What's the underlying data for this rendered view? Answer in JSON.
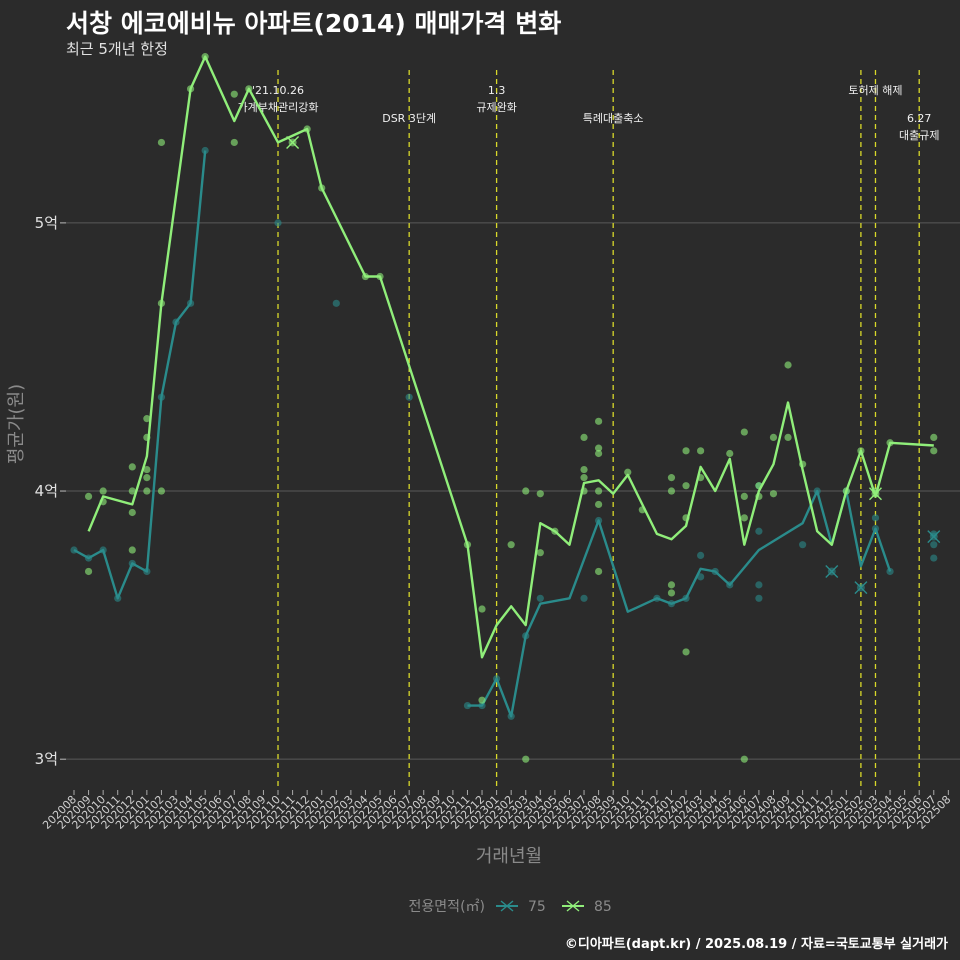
{
  "title": "서창 에코에비뉴 아파트(2014) 매매가격 변화",
  "subtitle": "최근 5개년 한정",
  "caption": "©디아파트(dapt.kr) / 2025.08.19 / 자료=국토교통부 실거래가",
  "chart_data": {
    "type": "line",
    "xlabel": "거래년월",
    "ylabel": "평균가(원)",
    "ylim": [
      2.9,
      5.6
    ],
    "yticks": [
      {
        "v": 3,
        "label": "3억"
      },
      {
        "v": 4,
        "label": "4억"
      },
      {
        "v": 5,
        "label": "5억"
      }
    ],
    "grid": true,
    "legend": {
      "title": "전용면적(㎡)",
      "placement": "bottom"
    },
    "x": [
      "202008",
      "202009",
      "202010",
      "202011",
      "202012",
      "202101",
      "202102",
      "202103",
      "202104",
      "202105",
      "202106",
      "202107",
      "202108",
      "202109",
      "202110",
      "202111",
      "202112",
      "202201",
      "202202",
      "202203",
      "202204",
      "202205",
      "202206",
      "202207",
      "202208",
      "202209",
      "202210",
      "202211",
      "202212",
      "202301",
      "202302",
      "202303",
      "202304",
      "202305",
      "202306",
      "202307",
      "202308",
      "202309",
      "202310",
      "202311",
      "202312",
      "202401",
      "202402",
      "202403",
      "202404",
      "202405",
      "202406",
      "202407",
      "202408",
      "202409",
      "202410",
      "202411",
      "202412",
      "202501",
      "202502",
      "202503",
      "202504",
      "202505",
      "202506",
      "202507",
      "202508"
    ],
    "series": [
      {
        "name": "75",
        "color": "#2a8b8b",
        "line": [
          [
            0,
            3.78
          ],
          [
            1,
            3.75
          ],
          [
            2,
            3.78
          ],
          [
            3,
            3.6
          ],
          [
            4,
            3.73
          ],
          [
            5,
            3.7
          ],
          [
            6,
            4.35
          ],
          [
            7,
            4.63
          ],
          [
            8,
            4.7
          ],
          [
            9,
            5.27
          ],
          [
            null,
            null
          ],
          [
            27,
            3.2
          ],
          [
            28,
            3.2
          ],
          [
            29,
            3.3
          ],
          [
            30,
            3.16
          ],
          [
            31,
            3.46
          ],
          [
            32,
            3.58
          ],
          [
            34,
            3.6
          ],
          [
            36,
            3.89
          ],
          [
            38,
            3.55
          ],
          [
            40,
            3.6
          ],
          [
            41,
            3.58
          ],
          [
            42,
            3.6
          ],
          [
            43,
            3.71
          ],
          [
            44,
            3.7
          ],
          [
            45,
            3.65
          ],
          [
            47,
            3.78
          ],
          [
            50,
            3.88
          ],
          [
            51,
            4.0
          ],
          [
            52,
            3.8
          ],
          [
            53,
            4.0
          ],
          [
            54,
            3.72
          ],
          [
            55,
            3.86
          ],
          [
            56,
            3.7
          ]
        ],
        "points": [
          [
            0,
            3.78
          ],
          [
            1,
            3.75
          ],
          [
            2,
            3.78
          ],
          [
            3,
            3.6
          ],
          [
            4,
            3.73
          ],
          [
            5,
            3.7
          ],
          [
            6,
            4.35
          ],
          [
            7,
            4.63
          ],
          [
            8,
            4.7
          ],
          [
            9,
            5.27
          ],
          [
            14,
            5.0
          ],
          [
            18,
            4.7
          ],
          [
            23,
            4.35
          ],
          [
            27,
            3.2
          ],
          [
            28,
            3.2
          ],
          [
            29,
            3.3
          ],
          [
            30,
            3.16
          ],
          [
            31,
            3.46
          ],
          [
            32,
            3.6
          ],
          [
            35,
            3.6
          ],
          [
            36,
            3.89
          ],
          [
            40,
            3.6
          ],
          [
            41,
            3.58
          ],
          [
            42,
            3.6
          ],
          [
            43,
            3.76
          ],
          [
            43,
            3.68
          ],
          [
            44,
            3.7
          ],
          [
            45,
            3.65
          ],
          [
            47,
            3.65
          ],
          [
            47,
            3.6
          ],
          [
            47,
            3.85
          ],
          [
            47,
            4.02
          ],
          [
            50,
            3.8
          ],
          [
            51,
            4.0
          ],
          [
            53,
            4.0
          ],
          [
            55,
            3.9
          ],
          [
            55,
            3.86
          ],
          [
            56,
            3.7
          ],
          [
            59,
            3.8
          ],
          [
            59,
            3.75
          ],
          [
            59,
            3.84
          ]
        ],
        "cancelled": [
          [
            52,
            3.7
          ],
          [
            54,
            3.64
          ],
          [
            59,
            3.83
          ]
        ]
      },
      {
        "name": "85",
        "color": "#90ee7a",
        "line": [
          [
            1,
            3.85
          ],
          [
            2,
            3.98
          ],
          [
            4,
            3.95
          ],
          [
            5,
            4.13
          ],
          [
            6,
            4.7
          ],
          [
            8,
            5.5
          ],
          [
            9,
            5.62
          ],
          [
            11,
            5.38
          ],
          [
            12,
            5.5
          ],
          [
            14,
            5.3
          ],
          [
            16,
            5.35
          ],
          [
            17,
            5.13
          ],
          [
            20,
            4.8
          ],
          [
            21,
            4.8
          ],
          [
            27,
            3.8
          ],
          [
            28,
            3.38
          ],
          [
            29,
            3.5
          ],
          [
            30,
            3.57
          ],
          [
            31,
            3.5
          ],
          [
            32,
            3.88
          ],
          [
            33,
            3.85
          ],
          [
            34,
            3.8
          ],
          [
            35,
            4.03
          ],
          [
            36,
            4.04
          ],
          [
            37,
            3.99
          ],
          [
            38,
            4.06
          ],
          [
            39,
            3.95
          ],
          [
            40,
            3.84
          ],
          [
            41,
            3.82
          ],
          [
            42,
            3.87
          ],
          [
            43,
            4.09
          ],
          [
            44,
            4.0
          ],
          [
            45,
            4.12
          ],
          [
            46,
            3.8
          ],
          [
            47,
            4.0
          ],
          [
            48,
            4.1
          ],
          [
            49,
            4.33
          ],
          [
            50,
            4.08
          ],
          [
            51,
            3.85
          ],
          [
            52,
            3.8
          ],
          [
            53,
            4.0
          ],
          [
            54,
            4.15
          ],
          [
            55,
            3.98
          ],
          [
            56,
            4.18
          ],
          [
            59,
            4.17
          ]
        ],
        "points": [
          [
            1,
            3.98
          ],
          [
            1,
            3.7
          ],
          [
            2,
            4.0
          ],
          [
            2,
            3.96
          ],
          [
            4,
            4.09
          ],
          [
            4,
            4.0
          ],
          [
            4,
            3.78
          ],
          [
            4,
            3.92
          ],
          [
            5,
            4.27
          ],
          [
            5,
            4.2
          ],
          [
            5,
            4.08
          ],
          [
            5,
            4.05
          ],
          [
            5,
            4.0
          ],
          [
            6,
            5.3
          ],
          [
            6,
            4.7
          ],
          [
            6,
            4.0
          ],
          [
            8,
            5.5
          ],
          [
            9,
            5.62
          ],
          [
            11,
            5.48
          ],
          [
            11,
            5.3
          ],
          [
            12,
            5.5
          ],
          [
            16,
            5.35
          ],
          [
            17,
            5.13
          ],
          [
            20,
            4.8
          ],
          [
            21,
            4.8
          ],
          [
            27,
            3.8
          ],
          [
            28,
            3.56
          ],
          [
            28,
            3.22
          ],
          [
            30,
            3.8
          ],
          [
            31,
            4.0
          ],
          [
            31,
            3.0
          ],
          [
            32,
            3.99
          ],
          [
            32,
            3.77
          ],
          [
            33,
            3.85
          ],
          [
            35,
            4.2
          ],
          [
            35,
            4.08
          ],
          [
            35,
            4.05
          ],
          [
            35,
            4.0
          ],
          [
            36,
            4.26
          ],
          [
            36,
            4.16
          ],
          [
            36,
            4.14
          ],
          [
            36,
            4.0
          ],
          [
            36,
            3.95
          ],
          [
            36,
            3.7
          ],
          [
            38,
            4.07
          ],
          [
            39,
            3.93
          ],
          [
            41,
            4.05
          ],
          [
            41,
            4.0
          ],
          [
            41,
            3.65
          ],
          [
            41,
            3.62
          ],
          [
            42,
            4.15
          ],
          [
            42,
            4.02
          ],
          [
            42,
            3.9
          ],
          [
            42,
            3.4
          ],
          [
            43,
            4.15
          ],
          [
            43,
            4.05
          ],
          [
            45,
            4.14
          ],
          [
            46,
            4.22
          ],
          [
            46,
            3.98
          ],
          [
            46,
            3.9
          ],
          [
            46,
            3.0
          ],
          [
            47,
            3.98
          ],
          [
            47,
            4.02
          ],
          [
            48,
            4.2
          ],
          [
            48,
            3.99
          ],
          [
            49,
            4.47
          ],
          [
            49,
            4.2
          ],
          [
            50,
            4.1
          ],
          [
            53,
            4.0
          ],
          [
            54,
            4.15
          ],
          [
            55,
            4.0
          ],
          [
            56,
            4.18
          ],
          [
            59,
            4.2
          ],
          [
            59,
            4.15
          ]
        ],
        "cancelled": [
          [
            15,
            5.3
          ],
          [
            55,
            3.99
          ]
        ]
      }
    ],
    "annotations": [
      {
        "x": 14,
        "lines": [
          "'21.10.26",
          "가계부채관리강화"
        ],
        "row": 0
      },
      {
        "x": 23,
        "lines": [
          "DSR 3단계"
        ],
        "row": 1
      },
      {
        "x": 29,
        "lines": [
          "1.3",
          "규제완화"
        ],
        "row": 0
      },
      {
        "x": 37,
        "lines": [
          "특례대출축소"
        ],
        "row": 1
      },
      {
        "x": 54,
        "lines": [
          ""
        ],
        "row": 0
      },
      {
        "x": 55,
        "lines": [
          "토허제 해제"
        ],
        "row": 0
      },
      {
        "x": 58,
        "lines": [
          "6.27",
          "대출규제"
        ],
        "row": 1
      }
    ]
  }
}
